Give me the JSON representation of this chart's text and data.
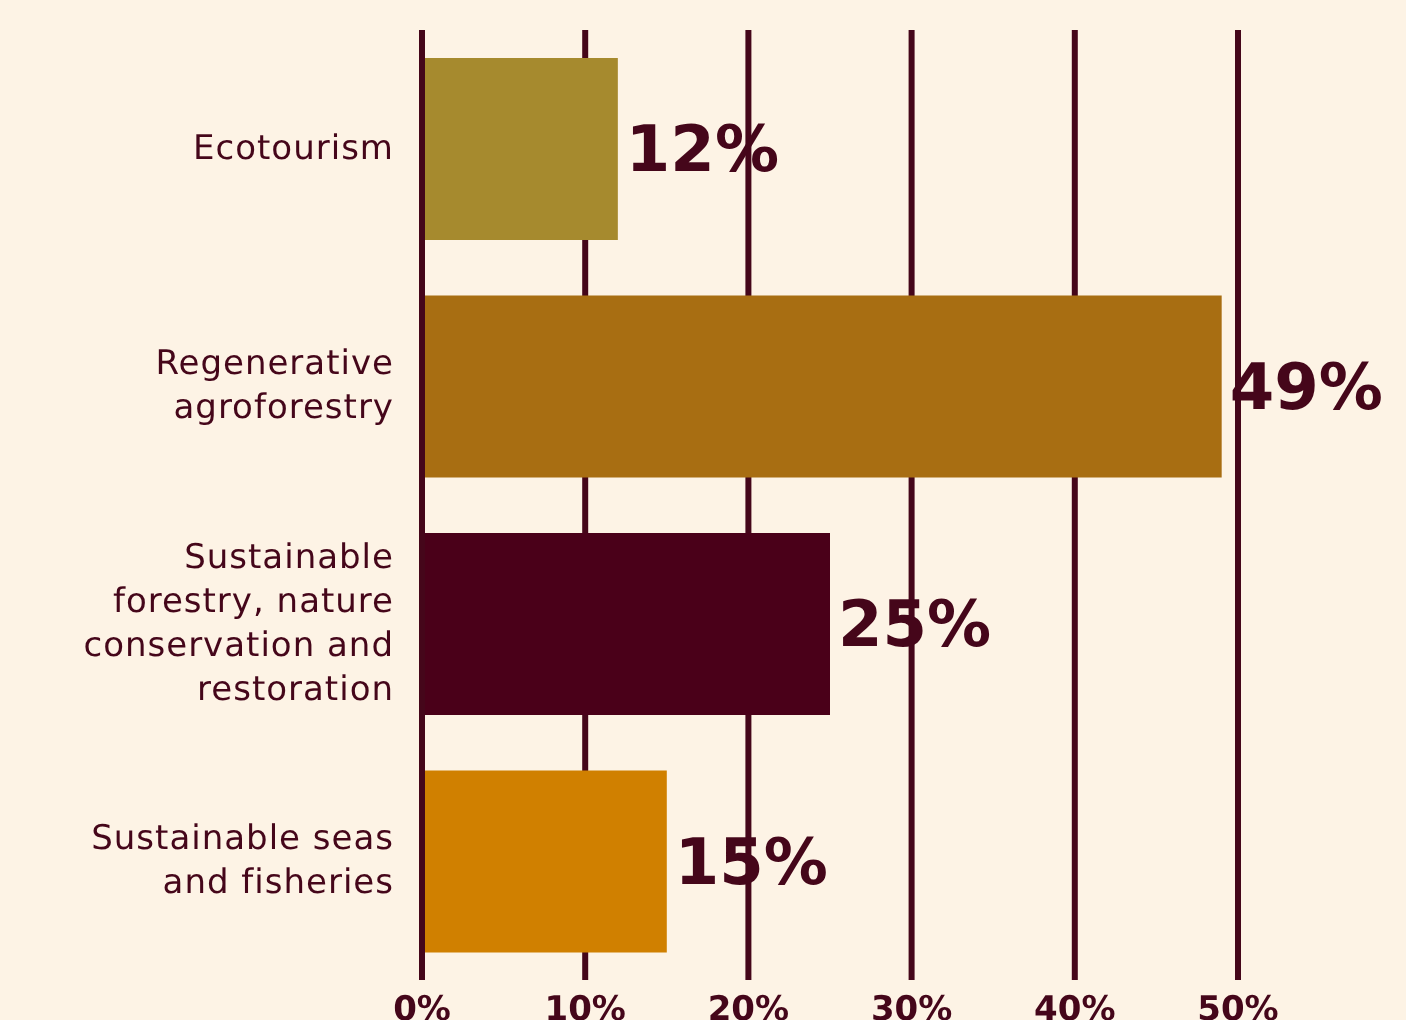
{
  "chart_data": {
    "type": "bar",
    "orientation": "horizontal",
    "categories": [
      "Ecotourism",
      "Regenerative agroforestry",
      "Sustainable forestry, nature conservation and restoration",
      "Sustainable seas and fisheries"
    ],
    "values": [
      12,
      49,
      25,
      15
    ],
    "colors": [
      "#a68a2e",
      "#a86e12",
      "#4a0019",
      "#d08000"
    ],
    "value_labels": [
      "12%",
      "49%",
      "25%",
      "15%"
    ],
    "xlim": [
      0,
      50
    ],
    "xticks": [
      {
        "value": 0,
        "label": "0%"
      },
      {
        "value": 10,
        "label": "10%"
      },
      {
        "value": 20,
        "label": "20%"
      },
      {
        "value": 30,
        "label": "30%"
      },
      {
        "value": 40,
        "label": "40%"
      },
      {
        "value": 50,
        "label": "50%"
      }
    ],
    "grid": "x"
  }
}
